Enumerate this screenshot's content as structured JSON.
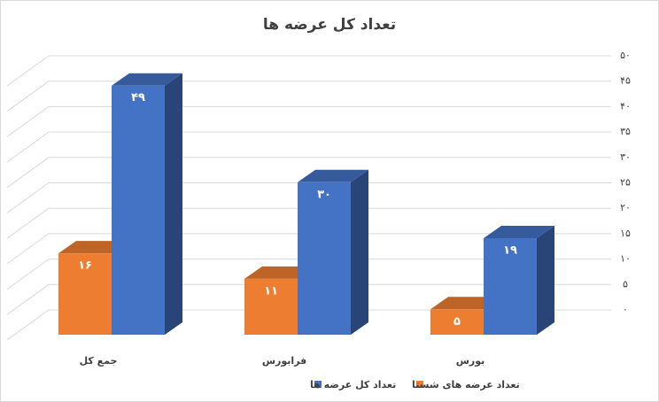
{
  "chart_data": {
    "type": "bar3d",
    "title": "تعداد کل عرضه ها",
    "categories": [
      "جمع کل",
      "فرابورس",
      "بورس"
    ],
    "series": [
      {
        "name": "تعداد عرضه های شستا",
        "color": "#ed7d31",
        "values": [
          16,
          11,
          5
        ],
        "value_labels": [
          "۱۶",
          "۱۱",
          "۵"
        ]
      },
      {
        "name": "تعداد کل عرضه ها",
        "color": "#4472c4",
        "values": [
          49,
          30,
          19
        ],
        "value_labels": [
          "۴۹",
          "۳۰",
          "۱۹"
        ]
      }
    ],
    "ylim": [
      0,
      50
    ],
    "yticks": [
      {
        "value": 0,
        "label": "۰"
      },
      {
        "value": 5,
        "label": "۵"
      },
      {
        "value": 10,
        "label": "۱۰"
      },
      {
        "value": 15,
        "label": "۱۵"
      },
      {
        "value": 20,
        "label": "۲۰"
      },
      {
        "value": 25,
        "label": "۲۵"
      },
      {
        "value": 30,
        "label": "۳۰"
      },
      {
        "value": 35,
        "label": "۳۵"
      },
      {
        "value": 40,
        "label": "۴۰"
      },
      {
        "value": 45,
        "label": "۴۵"
      },
      {
        "value": 50,
        "label": "۵۰"
      }
    ],
    "grid": true,
    "legend": "bottom"
  }
}
